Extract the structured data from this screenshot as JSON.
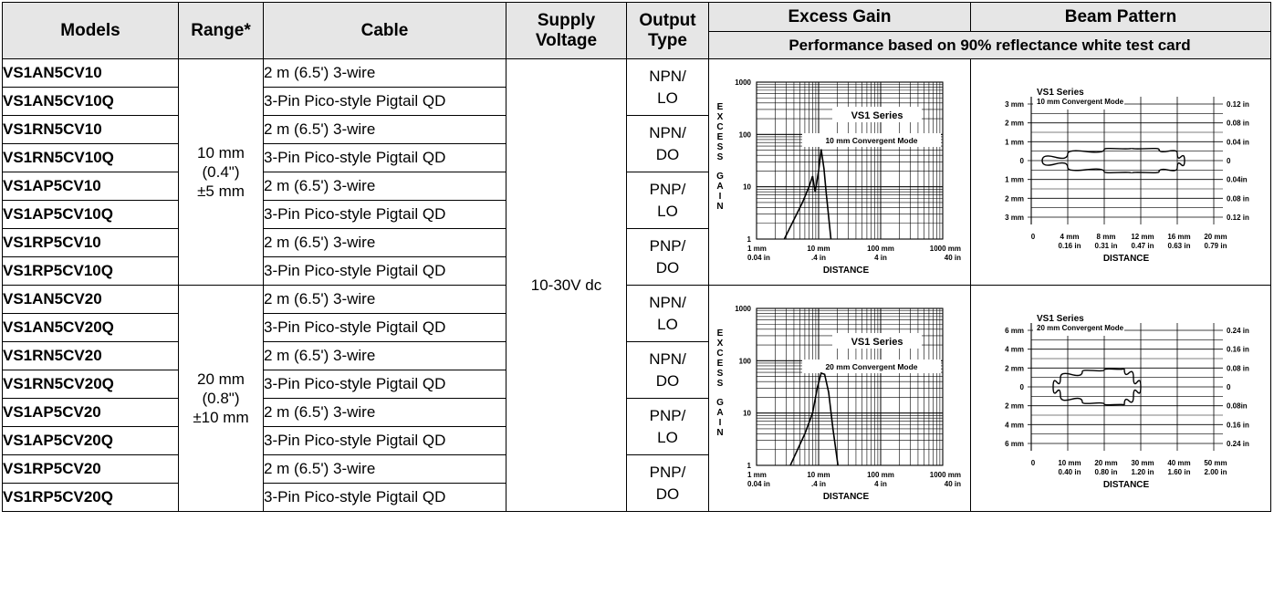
{
  "headers": {
    "models": "Models",
    "range": "Range*",
    "cable": "Cable",
    "supply_voltage": "Supply Voltage",
    "output_type": "Output Type",
    "excess_gain": "Excess Gain",
    "beam_pattern": "Beam Pattern",
    "performance_note": "Performance based on 90% reflectance white test card"
  },
  "ranges": {
    "r10": {
      "line1": "10 mm",
      "line2": "(0.4\")",
      "line3": "±5 mm"
    },
    "r20": {
      "line1": "20 mm",
      "line2": "(0.8\")",
      "line3": "±10 mm"
    }
  },
  "supply_voltage": "10-30V dc",
  "cable_types": {
    "wire": "2 m (6.5') 3-wire",
    "qd": "3-Pin Pico-style Pigtail QD"
  },
  "rows": [
    {
      "model": "VS1AN5CV10",
      "cable": "2 m (6.5') 3-wire"
    },
    {
      "model": "VS1AN5CV10Q",
      "cable": "3-Pin Pico-style Pigtail QD"
    },
    {
      "model": "VS1RN5CV10",
      "cable": "2 m (6.5') 3-wire"
    },
    {
      "model": "VS1RN5CV10Q",
      "cable": "3-Pin Pico-style Pigtail QD"
    },
    {
      "model": "VS1AP5CV10",
      "cable": "2 m (6.5') 3-wire"
    },
    {
      "model": "VS1AP5CV10Q",
      "cable": "3-Pin Pico-style Pigtail QD"
    },
    {
      "model": "VS1RP5CV10",
      "cable": "2 m (6.5') 3-wire"
    },
    {
      "model": "VS1RP5CV10Q",
      "cable": "3-Pin Pico-style Pigtail QD"
    },
    {
      "model": "VS1AN5CV20",
      "cable": "2 m (6.5') 3-wire"
    },
    {
      "model": "VS1AN5CV20Q",
      "cable": "3-Pin Pico-style Pigtail QD"
    },
    {
      "model": "VS1RN5CV20",
      "cable": "2 m (6.5') 3-wire"
    },
    {
      "model": "VS1RN5CV20Q",
      "cable": "3-Pin Pico-style Pigtail QD"
    },
    {
      "model": "VS1AP5CV20",
      "cable": "2 m (6.5') 3-wire"
    },
    {
      "model": "VS1AP5CV20Q",
      "cable": "3-Pin Pico-style Pigtail QD"
    },
    {
      "model": "VS1RP5CV20",
      "cable": "2 m (6.5') 3-wire"
    },
    {
      "model": "VS1RP5CV20Q",
      "cable": "3-Pin Pico-style Pigtail QD"
    }
  ],
  "outputs": [
    {
      "line1": "NPN/",
      "line2": "LO"
    },
    {
      "line1": "NPN/",
      "line2": "DO"
    },
    {
      "line1": "PNP/",
      "line2": "LO"
    },
    {
      "line1": "PNP/",
      "line2": "DO"
    },
    {
      "line1": "NPN/",
      "line2": "LO"
    },
    {
      "line1": "NPN/",
      "line2": "DO"
    },
    {
      "line1": "PNP/",
      "line2": "LO"
    },
    {
      "line1": "PNP/",
      "line2": "DO"
    }
  ],
  "chart_data": [
    {
      "type": "line",
      "title": "VS1 Series",
      "subtitle": "10 mm Convergent Mode",
      "ylabel": "EXCESS GAIN",
      "xlabel": "DISTANCE",
      "x_scale": "log",
      "y_scale": "log",
      "xlim": [
        1,
        1000
      ],
      "ylim": [
        1,
        1000
      ],
      "y_ticks": [
        "1",
        "10",
        "100",
        "1000"
      ],
      "x_ticks": [
        {
          "mm": "1 mm",
          "in": "0.04 in"
        },
        {
          "mm": "10 mm",
          "in": ".4 in"
        },
        {
          "mm": "100 mm",
          "in": "4 in"
        },
        {
          "mm": "1000 mm",
          "in": "40 in"
        }
      ],
      "series": [
        {
          "x": [
            2.8,
            5.5,
            7.0,
            8.0,
            8.8,
            10.0,
            11.0,
            12.2,
            13.2,
            15.8
          ],
          "y": [
            1,
            5,
            10,
            16,
            8,
            20,
            52,
            22,
            8,
            1
          ]
        }
      ]
    },
    {
      "type": "line",
      "title": "VS1 Series",
      "subtitle": "10 mm Convergent Mode",
      "xlabel": "DISTANCE",
      "xlim": [
        0,
        20
      ],
      "ylim": [
        -3,
        3
      ],
      "left_ticks": [
        "3 mm",
        "2 mm",
        "1 mm",
        "0",
        "1 mm",
        "2 mm",
        "3 mm"
      ],
      "right_ticks": [
        "0.12 in",
        "0.08 in",
        "0.04 in",
        "0",
        "0.04in",
        "0.08 in",
        "0.12 in"
      ],
      "x_ticks": [
        {
          "mm": "0",
          "in": ""
        },
        {
          "mm": "4 mm",
          "in": "0.16 in"
        },
        {
          "mm": "8 mm",
          "in": "0.31 in"
        },
        {
          "mm": "12 mm",
          "in": "0.47 in"
        },
        {
          "mm": "16 mm",
          "in": "0.63 in"
        },
        {
          "mm": "20 mm",
          "in": "0.79 in"
        }
      ],
      "series": [
        {
          "x": [
            1.2,
            4,
            8,
            11,
            14,
            16,
            16.8,
            16,
            14,
            11,
            8,
            4,
            1.2
          ],
          "y": [
            0,
            1.1,
            1.8,
            2.0,
            1.8,
            1.2,
            0,
            -1.2,
            -1.8,
            -2.0,
            -1.8,
            -1.1,
            0
          ]
        }
      ]
    },
    {
      "type": "line",
      "title": "VS1 Series",
      "subtitle": "20 mm Convergent Mode",
      "ylabel": "EXCESS GAIN",
      "xlabel": "DISTANCE",
      "x_scale": "log",
      "y_scale": "log",
      "xlim": [
        1,
        1000
      ],
      "ylim": [
        1,
        1000
      ],
      "y_ticks": [
        "1",
        "10",
        "100",
        "1000"
      ],
      "x_ticks": [
        {
          "mm": "1 mm",
          "in": "0.04 in"
        },
        {
          "mm": "10 mm",
          "in": ".4 in"
        },
        {
          "mm": "100 mm",
          "in": "4 in"
        },
        {
          "mm": "1000 mm",
          "in": "40 in"
        }
      ],
      "series": [
        {
          "x": [
            3.5,
            6,
            8,
            9.5,
            11,
            12.5,
            14.5,
            17,
            20.5
          ],
          "y": [
            1,
            4,
            10,
            30,
            58,
            55,
            25,
            5,
            1
          ]
        }
      ]
    },
    {
      "type": "line",
      "title": "VS1 Series",
      "subtitle": "20 mm Convergent Mode",
      "xlabel": "DISTANCE",
      "xlim": [
        0,
        50
      ],
      "ylim": [
        -7,
        7
      ],
      "left_ticks": [
        "6 mm",
        "4 mm",
        "2 mm",
        "0",
        "2 mm",
        "4 mm",
        "6 mm"
      ],
      "right_ticks": [
        "0.24 in",
        "0.16 in",
        "0.08 in",
        "0",
        "0.08in",
        "0.16 in",
        "0.24 in"
      ],
      "x_ticks": [
        {
          "mm": "0",
          "in": ""
        },
        {
          "mm": "10 mm",
          "in": "0.40 in"
        },
        {
          "mm": "20 mm",
          "in": "0.80 in"
        },
        {
          "mm": "30 mm",
          "in": "1.20 in"
        },
        {
          "mm": "40 mm",
          "in": "1.60 in"
        },
        {
          "mm": "50 mm",
          "in": "2.00 in"
        }
      ],
      "series": [
        {
          "x": [
            6,
            8,
            14,
            20,
            25.5,
            28,
            30,
            28,
            25.5,
            20,
            14,
            8,
            6
          ],
          "y": [
            0,
            3,
            4.9,
            5.5,
            5.8,
            3,
            0,
            -3,
            -5.8,
            -5.5,
            -4.9,
            -3,
            0
          ]
        }
      ]
    }
  ]
}
